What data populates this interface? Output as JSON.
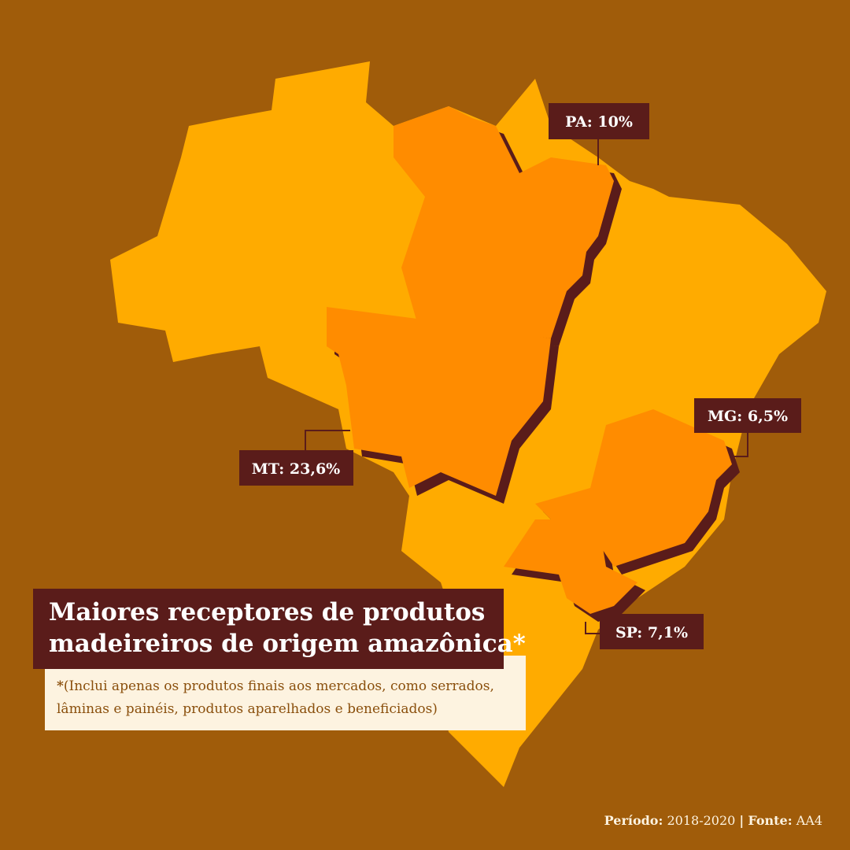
{
  "title": {
    "lines": [
      "Maiores receptores de produtos",
      "madeireiros de origem amazônica*"
    ]
  },
  "footnote": {
    "marker": "*",
    "lines": [
      "(Inclui apenas os produtos finais aos mercados, como serrados,",
      "lâminas e painéis, produtos aparelhados e beneficiados)"
    ]
  },
  "regions": [
    {
      "label": "PA: 10%"
    },
    {
      "label": "MT: 23,6%"
    },
    {
      "label": "MG: 6,5%"
    },
    {
      "label": "SP: 7,1%"
    }
  ],
  "footer": {
    "period_label": "Período:",
    "period": "2018-2020",
    "separator": "|",
    "source_label": "Fonte:",
    "source": "AA4"
  }
}
